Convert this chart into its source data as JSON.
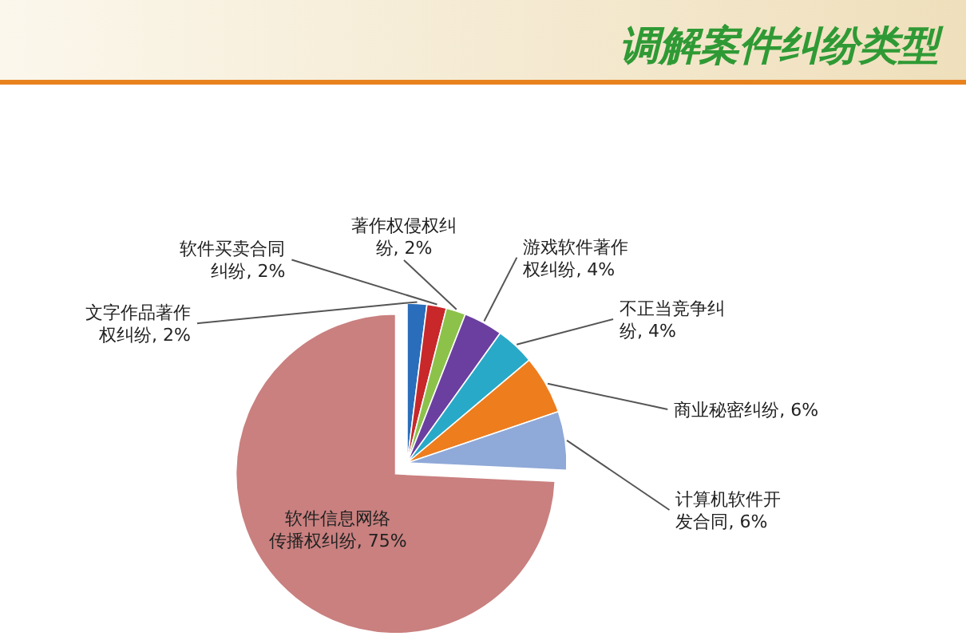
{
  "chart_data": {
    "type": "pie",
    "title": "调解案件纠纷类型",
    "categories": [
      "文字作品著作权纠纷",
      "软件买卖合同纠纷",
      "著作权侵权纠纷",
      "游戏软件著作权纠纷",
      "不正当竞争纠纷",
      "商业秘密纠纷",
      "计算机软件开发合同",
      "软件信息网络传播权纠纷"
    ],
    "values": [
      2,
      2,
      2,
      4,
      4,
      6,
      6,
      75
    ],
    "colors": [
      "#2a6ebb",
      "#c8282a",
      "#8cc24a",
      "#6b3fa0",
      "#29a9c8",
      "#ee7d1e",
      "#8fa9d8",
      "#c9807f"
    ],
    "value_labels": [
      "2%",
      "2%",
      "2%",
      "4%",
      "4%",
      "6%",
      "6%",
      "75%"
    ]
  }
}
